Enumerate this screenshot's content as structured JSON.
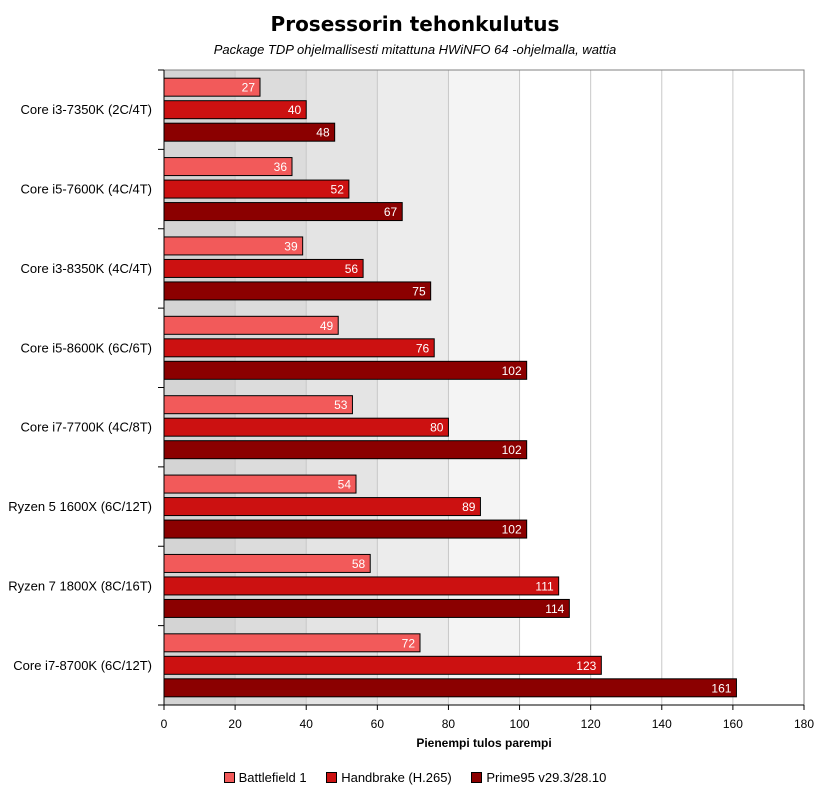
{
  "chart_data": {
    "type": "bar",
    "orientation": "horizontal",
    "title": "Prosessorin tehonkulutus",
    "subtitle": "Package TDP ohjelmallisesti mitattuna HWiNFO 64 -ohjelmalla, wattia",
    "xlabel": "Pienempi tulos parempi",
    "ylabel": "",
    "xlim": [
      0,
      180
    ],
    "xticks": [
      0,
      20,
      40,
      60,
      80,
      100,
      120,
      140,
      160,
      180
    ],
    "grid": true,
    "legend_position": "bottom",
    "categories": [
      "Core i3-7350K (2C/4T)",
      "Core i5-7600K (4C/4T)",
      "Core i3-8350K (4C/4T)",
      "Core i5-8600K (6C/6T)",
      "Core i7-7700K (4C/8T)",
      "Ryzen 5 1600X (6C/12T)",
      "Ryzen 7 1800X (8C/16T)",
      "Core i7-8700K (6C/12T)"
    ],
    "series": [
      {
        "name": "Battlefield 1",
        "color": "#f25a5a",
        "values": [
          27,
          36,
          39,
          49,
          53,
          54,
          58,
          72
        ]
      },
      {
        "name": "Handbrake (H.265)",
        "color": "#cc1111",
        "values": [
          40,
          52,
          56,
          76,
          80,
          89,
          111,
          123
        ]
      },
      {
        "name": "Prime95 v29.3/28.10",
        "color": "#8b0000",
        "values": [
          48,
          67,
          75,
          102,
          102,
          102,
          114,
          161
        ]
      }
    ]
  }
}
